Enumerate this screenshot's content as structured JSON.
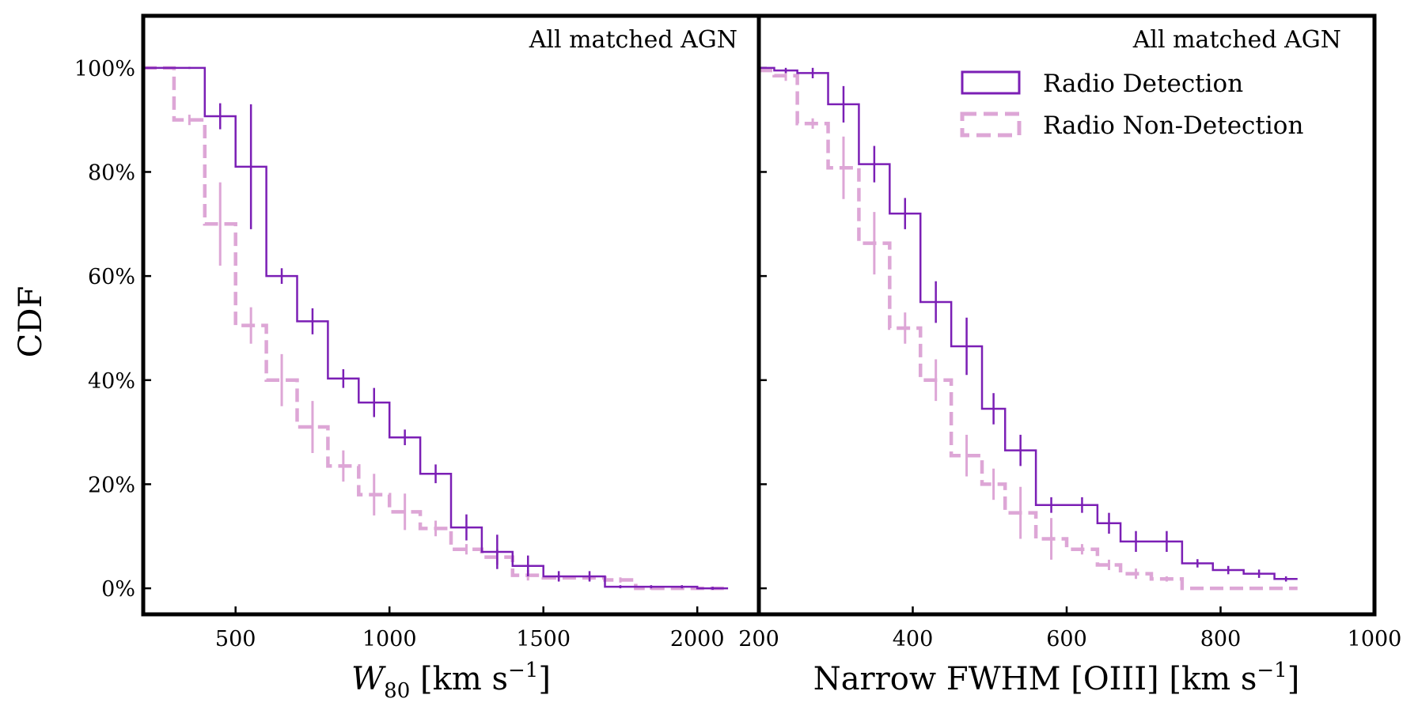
{
  "colors": {
    "detection": "#7b1fb5",
    "non_detection": "#dda6d6"
  },
  "chart_data": [
    {
      "type": "line",
      "step": true,
      "annotation": "All matched AGN",
      "xlabel": {
        "main": "W",
        "sub": "80",
        "rest": " [km s",
        "sup": "−1",
        "end": "]"
      },
      "ylabel": "CDF",
      "xlim": [
        200,
        2200
      ],
      "ylim": [
        -0.05,
        1.1
      ],
      "xticks": [
        500,
        1000,
        1500,
        2000
      ],
      "xtick_labels": [
        "500",
        "1000",
        "1500",
        "2000"
      ],
      "yticks": [
        0,
        0.2,
        0.4,
        0.6,
        0.8,
        1.0
      ],
      "ytick_labels": [
        "0%",
        "20%",
        "40%",
        "60%",
        "80%",
        "100%"
      ],
      "series": [
        {
          "name": "Radio Detection",
          "style": "solid",
          "edges": [
            200,
            300,
            400,
            500,
            600,
            700,
            800,
            900,
            1000,
            1100,
            1200,
            1300,
            1400,
            1500,
            1600,
            1700,
            1800,
            1900,
            2000,
            2100
          ],
          "values": [
            1.0,
            1.0,
            0.907,
            0.81,
            0.6,
            0.513,
            0.403,
            0.357,
            0.29,
            0.22,
            0.117,
            0.07,
            0.043,
            0.023,
            0.023,
            0.003,
            0.003,
            0.003,
            0.0
          ],
          "errors": [
            0,
            0.002,
            0.025,
            0.12,
            0.015,
            0.025,
            0.018,
            0.028,
            0.015,
            0.018,
            0.025,
            0.033,
            0.02,
            0.01,
            0.01,
            0.003,
            0.003,
            0.003,
            0.003
          ]
        },
        {
          "name": "Radio Non-Detection",
          "style": "dashed",
          "edges": [
            200,
            300,
            400,
            500,
            600,
            700,
            800,
            900,
            1000,
            1100,
            1200,
            1300,
            1400,
            1500,
            1600,
            1700,
            1800,
            1900,
            2000,
            2100
          ],
          "values": [
            1.0,
            0.9,
            0.7,
            0.505,
            0.4,
            0.31,
            0.235,
            0.18,
            0.147,
            0.115,
            0.075,
            0.06,
            0.025,
            0.02,
            0.02,
            0.016,
            0.0,
            0.0,
            0.0
          ],
          "errors": [
            0,
            0.01,
            0.08,
            0.035,
            0.05,
            0.05,
            0.03,
            0.04,
            0.035,
            0.015,
            0.01,
            0.015,
            0.01,
            0.005,
            0.005,
            0.005,
            0.003,
            0.003,
            0.003
          ]
        }
      ]
    },
    {
      "type": "line",
      "step": true,
      "annotation": "All matched AGN",
      "xlabel": {
        "main": "Narrow FWHM [OIII] [km s",
        "sup": "−1",
        "end": "]"
      },
      "xlim": [
        200,
        1000
      ],
      "ylim": [
        -0.05,
        1.1
      ],
      "xticks": [
        200,
        400,
        600,
        800,
        1000
      ],
      "xtick_labels": [
        "200",
        "400",
        "600",
        "800",
        "1000"
      ],
      "yticks": [
        0,
        0.2,
        0.4,
        0.6,
        0.8,
        1.0
      ],
      "legend_position": "top-right",
      "series": [
        {
          "name": "Radio Detection",
          "style": "solid",
          "edges": [
            200,
            220,
            250,
            290,
            330,
            370,
            410,
            450,
            490,
            520,
            560,
            600,
            640,
            670,
            710,
            750,
            790,
            830,
            870,
            900
          ],
          "values": [
            1.0,
            0.995,
            0.99,
            0.93,
            0.815,
            0.72,
            0.55,
            0.465,
            0.345,
            0.265,
            0.16,
            0.16,
            0.125,
            0.09,
            0.09,
            0.048,
            0.035,
            0.028,
            0.018
          ],
          "errors": [
            0,
            0.005,
            0.01,
            0.035,
            0.035,
            0.03,
            0.04,
            0.055,
            0.03,
            0.03,
            0.015,
            0.015,
            0.02,
            0.02,
            0.02,
            0.008,
            0.008,
            0.008,
            0.005
          ]
        },
        {
          "name": "Radio Non-Detection",
          "style": "dashed",
          "edges": [
            200,
            220,
            250,
            290,
            330,
            370,
            410,
            450,
            490,
            520,
            560,
            600,
            640,
            670,
            710,
            750,
            790,
            830,
            870,
            900
          ],
          "values": [
            0.995,
            0.985,
            0.893,
            0.808,
            0.663,
            0.5,
            0.4,
            0.255,
            0.2,
            0.145,
            0.095,
            0.075,
            0.045,
            0.028,
            0.018,
            0.0,
            0.0,
            0.0,
            0.0
          ],
          "errors": [
            0,
            0.01,
            0.01,
            0.06,
            0.06,
            0.03,
            0.04,
            0.04,
            0.03,
            0.05,
            0.04,
            0.01,
            0.01,
            0.01,
            0.005,
            0.0,
            0.0,
            0.0,
            0.0
          ]
        }
      ]
    }
  ]
}
